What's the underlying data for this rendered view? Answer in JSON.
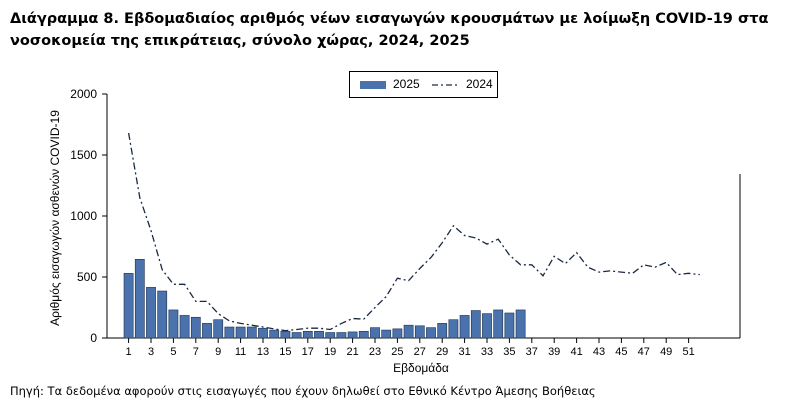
{
  "title": "Διάγραμμα 8. Εβδομαδιαίος αριθμός νέων εισαγωγών κρουσμάτων με λοίμωξη COVID-19 στα νοσοκομεία της επικράτειας, σύνολο χώρας, 2024, 2025",
  "source": "Πηγή: Τα δεδομένα αφορούν στις εισαγωγές που έχουν δηλωθεί στο Εθνικό Κέντρο Άμεσης Βοήθειας",
  "chart_data": {
    "type": "bar",
    "xlabel": "Εβδομάδα",
    "ylabel": "Αριθμός εισαγωγών ασθενών COVID-19",
    "ylim": [
      0,
      2000
    ],
    "yticks": [
      0,
      500,
      1000,
      1500,
      2000
    ],
    "xticks": [
      1,
      3,
      5,
      7,
      9,
      11,
      13,
      15,
      17,
      19,
      21,
      23,
      25,
      27,
      29,
      31,
      33,
      35,
      37,
      39,
      41,
      43,
      45,
      47,
      49,
      51
    ],
    "legend": {
      "position": "top",
      "entries": [
        "2025",
        "2024"
      ]
    },
    "grid": false,
    "colors": {
      "bar": "#4a72ad",
      "line": "#1a2a44"
    },
    "series": [
      {
        "name": "2025",
        "type": "bar",
        "x": [
          1,
          2,
          3,
          4,
          5,
          6,
          7,
          8,
          9,
          10,
          11,
          12,
          13,
          14,
          15,
          16,
          17,
          18,
          19,
          20,
          21,
          22,
          23,
          24,
          25,
          26,
          27,
          28,
          29,
          30,
          31,
          32,
          33,
          34,
          35,
          36
        ],
        "values": [
          530,
          645,
          415,
          385,
          230,
          185,
          170,
          120,
          150,
          90,
          90,
          90,
          80,
          65,
          55,
          45,
          55,
          55,
          45,
          45,
          50,
          55,
          85,
          65,
          75,
          105,
          100,
          85,
          120,
          150,
          185,
          225,
          200,
          230,
          205,
          230
        ]
      },
      {
        "name": "2024",
        "type": "line",
        "style": "dash-dot",
        "x": [
          1,
          2,
          3,
          4,
          5,
          6,
          7,
          8,
          9,
          10,
          11,
          12,
          13,
          14,
          15,
          16,
          17,
          18,
          19,
          20,
          21,
          22,
          23,
          24,
          25,
          26,
          27,
          28,
          29,
          30,
          31,
          32,
          33,
          34,
          35,
          36,
          37,
          38,
          39,
          40,
          41,
          42,
          43,
          44,
          45,
          46,
          47,
          48,
          49,
          50,
          51,
          52
        ],
        "values": [
          1680,
          1150,
          880,
          560,
          440,
          440,
          300,
          300,
          200,
          140,
          120,
          105,
          90,
          75,
          60,
          70,
          80,
          80,
          70,
          120,
          160,
          155,
          250,
          340,
          490,
          470,
          570,
          660,
          780,
          920,
          840,
          820,
          770,
          810,
          680,
          600,
          600,
          510,
          670,
          610,
          700,
          580,
          540,
          550,
          540,
          530,
          600,
          580,
          620,
          520,
          530,
          520
        ]
      }
    ]
  }
}
